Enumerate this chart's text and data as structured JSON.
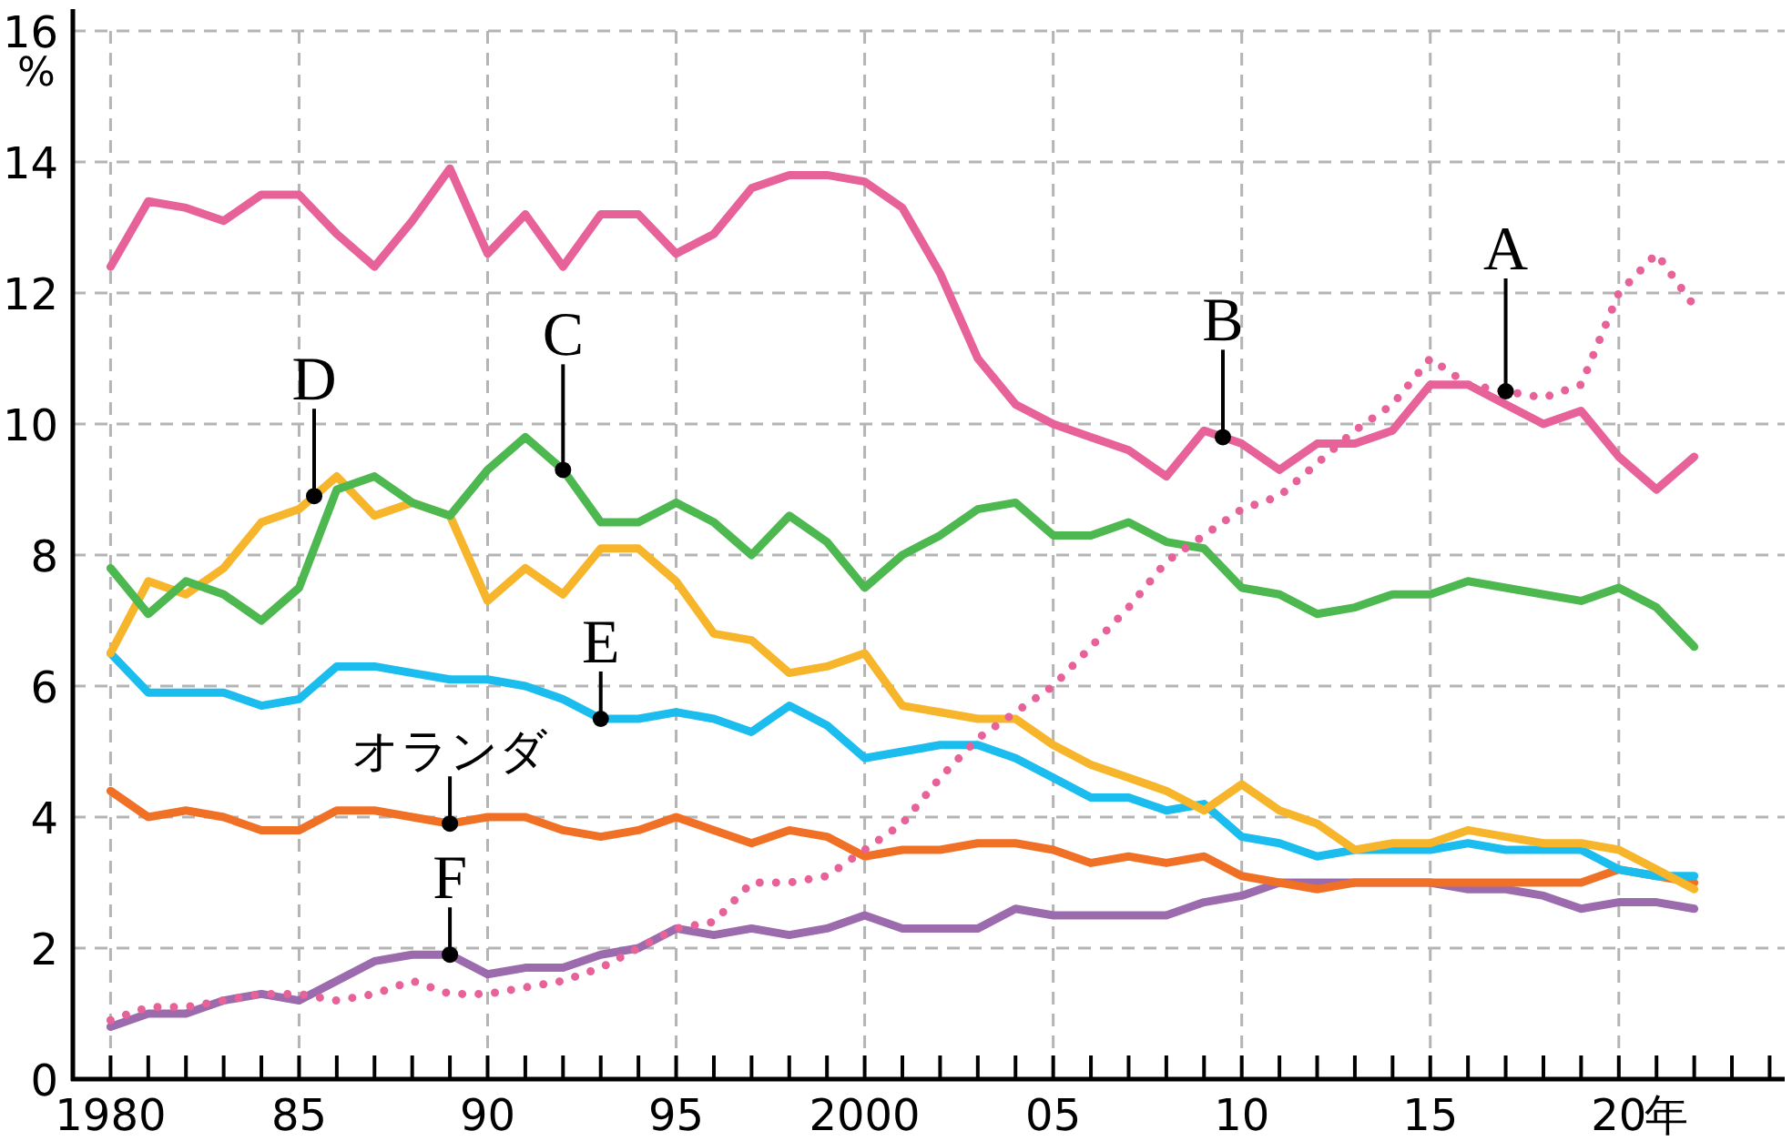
{
  "chart_data": {
    "type": "line",
    "xlabel": "年",
    "ylabel": "%",
    "grid": true,
    "marker": "none",
    "line_style": "solid",
    "x": [
      1980,
      1981,
      1982,
      1983,
      1984,
      1985,
      1986,
      1987,
      1988,
      1989,
      1990,
      1991,
      1992,
      1993,
      1994,
      1995,
      1996,
      1997,
      1998,
      1999,
      2000,
      2001,
      2002,
      2003,
      2004,
      2005,
      2006,
      2007,
      2008,
      2009,
      2010,
      2011,
      2012,
      2013,
      2014,
      2015,
      2016,
      2017,
      2018,
      2019,
      2020,
      2021,
      2022
    ],
    "xlim": [
      1979,
      2024.4
    ],
    "xticks": [
      1980,
      {
        "value": 1981,
        "label": null
      },
      {
        "value": 1982,
        "label": null
      },
      {
        "value": 1983,
        "label": null
      },
      {
        "value": 1984,
        "label": null
      },
      {
        "value": 1985,
        "label": "85"
      },
      {
        "value": 1986,
        "label": null
      },
      {
        "value": 1987,
        "label": null
      },
      {
        "value": 1988,
        "label": null
      },
      {
        "value": 1989,
        "label": null
      },
      {
        "value": 1990,
        "label": "90"
      },
      {
        "value": 1991,
        "label": null
      },
      {
        "value": 1992,
        "label": null
      },
      {
        "value": 1993,
        "label": null
      },
      {
        "value": 1994,
        "label": null
      },
      {
        "value": 1995,
        "label": "95"
      },
      {
        "value": 1996,
        "label": null
      },
      {
        "value": 1997,
        "label": null
      },
      {
        "value": 1998,
        "label": null
      },
      {
        "value": 1999,
        "label": null
      },
      2000,
      {
        "value": 2001,
        "label": null
      },
      {
        "value": 2002,
        "label": null
      },
      {
        "value": 2003,
        "label": null
      },
      {
        "value": 2004,
        "label": null
      },
      {
        "value": 2005,
        "label": "05"
      },
      {
        "value": 2006,
        "label": null
      },
      {
        "value": 2007,
        "label": null
      },
      {
        "value": 2008,
        "label": null
      },
      {
        "value": 2009,
        "label": null
      },
      {
        "value": 2010,
        "label": "10"
      },
      {
        "value": 2011,
        "label": null
      },
      {
        "value": 2012,
        "label": null
      },
      {
        "value": 2013,
        "label": null
      },
      {
        "value": 2014,
        "label": null
      },
      {
        "value": 2015,
        "label": "15"
      },
      {
        "value": 2016,
        "label": null
      },
      {
        "value": 2017,
        "label": null
      },
      {
        "value": 2018,
        "label": null
      },
      {
        "value": 2019,
        "label": null
      },
      {
        "value": 2020,
        "label": "20"
      },
      {
        "value": 2021,
        "label": null
      },
      {
        "value": 2022,
        "label": null
      },
      {
        "value": 2023,
        "label": null
      },
      {
        "value": 2024,
        "label": null
      }
    ],
    "ylim": [
      0,
      16
    ],
    "yticks": [
      0,
      2,
      4,
      6,
      8,
      10,
      12,
      14,
      16
    ],
    "series": [
      {
        "color": "#e8629a",
        "line_style": "dotted",
        "values": [
          0.9,
          1.1,
          1.1,
          1.2,
          1.3,
          1.3,
          1.2,
          1.3,
          1.5,
          1.3,
          1.3,
          1.4,
          1.5,
          1.7,
          2.0,
          2.3,
          2.4,
          3.0,
          3.0,
          3.1,
          3.5,
          3.9,
          4.6,
          5.2,
          5.6,
          6.0,
          6.6,
          7.2,
          7.9,
          8.3,
          8.7,
          8.9,
          9.4,
          9.9,
          10.3,
          11.0,
          10.6,
          10.5,
          10.4,
          10.6,
          12.0,
          12.6,
          11.8
        ]
      },
      {
        "color": "#e8629a",
        "values": [
          12.4,
          13.4,
          13.3,
          13.1,
          13.5,
          13.5,
          12.9,
          12.4,
          13.1,
          13.9,
          12.6,
          13.2,
          12.4,
          13.2,
          13.2,
          12.6,
          12.9,
          13.6,
          13.8,
          13.8,
          13.7,
          13.3,
          12.3,
          11.0,
          10.3,
          10.0,
          9.8,
          9.6,
          9.2,
          9.9,
          9.7,
          9.3,
          9.7,
          9.7,
          9.9,
          10.6,
          10.6,
          10.3,
          10.0,
          10.2,
          9.5,
          9.0,
          9.5
        ]
      },
      {
        "color": "#4cb84f",
        "values": [
          7.8,
          7.1,
          7.6,
          7.4,
          7.0,
          7.5,
          9.0,
          9.2,
          8.8,
          8.6,
          9.3,
          9.8,
          9.3,
          8.5,
          8.5,
          8.8,
          8.5,
          8.0,
          8.6,
          8.2,
          7.5,
          8.0,
          8.3,
          8.7,
          8.8,
          8.3,
          8.3,
          8.5,
          8.2,
          8.1,
          7.5,
          7.4,
          7.1,
          7.2,
          7.4,
          7.4,
          7.6,
          7.5,
          7.4,
          7.3,
          7.5,
          7.2,
          6.6
        ]
      },
      {
        "color": "#f7b52c",
        "values": [
          6.5,
          7.6,
          7.4,
          7.8,
          8.5,
          8.7,
          9.2,
          8.6,
          8.8,
          8.6,
          7.3,
          7.8,
          7.4,
          8.1,
          8.1,
          7.6,
          6.8,
          6.7,
          6.2,
          6.3,
          6.5,
          5.7,
          5.6,
          5.5,
          5.5,
          5.1,
          4.8,
          4.6,
          4.4,
          4.1,
          4.5,
          4.1,
          3.9,
          3.5,
          3.6,
          3.6,
          3.8,
          3.7,
          3.6,
          3.6,
          3.5,
          3.2,
          2.9
        ]
      },
      {
        "color": "#1bbcee",
        "values": [
          6.5,
          5.9,
          5.9,
          5.9,
          5.7,
          5.8,
          6.3,
          6.3,
          6.2,
          6.1,
          6.1,
          6.0,
          5.8,
          5.5,
          5.5,
          5.6,
          5.5,
          5.3,
          5.7,
          5.4,
          4.9,
          5.0,
          5.1,
          5.1,
          4.9,
          4.6,
          4.3,
          4.3,
          4.1,
          4.2,
          3.7,
          3.6,
          3.4,
          3.5,
          3.5,
          3.5,
          3.6,
          3.5,
          3.5,
          3.5,
          3.2,
          3.1,
          3.1
        ]
      },
      {
        "color": "#f07026",
        "values": [
          4.4,
          4.0,
          4.1,
          4.0,
          3.8,
          3.8,
          4.1,
          4.1,
          4.0,
          3.9,
          4.0,
          4.0,
          3.8,
          3.7,
          3.8,
          4.0,
          3.8,
          3.6,
          3.8,
          3.7,
          3.4,
          3.5,
          3.5,
          3.6,
          3.6,
          3.5,
          3.3,
          3.4,
          3.3,
          3.4,
          3.1,
          3.0,
          2.9,
          3.0,
          3.0,
          3.0,
          3.0,
          3.0,
          3.0,
          3.0,
          3.2,
          3.1,
          3.0
        ]
      },
      {
        "color": "#9b6bad",
        "values": [
          0.8,
          1.0,
          1.0,
          1.2,
          1.3,
          1.2,
          1.5,
          1.8,
          1.9,
          1.9,
          1.6,
          1.7,
          1.7,
          1.9,
          2.0,
          2.3,
          2.2,
          2.3,
          2.2,
          2.3,
          2.5,
          2.3,
          2.3,
          2.3,
          2.6,
          2.5,
          2.5,
          2.5,
          2.5,
          2.7,
          2.8,
          3.0,
          3.0,
          3.0,
          3.0,
          3.0,
          2.9,
          2.9,
          2.8,
          2.6,
          2.7,
          2.7,
          2.6
        ]
      }
    ],
    "annotations": [
      {
        "text": "A",
        "x": 2017,
        "y": 10.5
      },
      {
        "text": "B",
        "x": 2009.5,
        "y": 9.8
      },
      {
        "text": "C",
        "x": 1992,
        "y": 9.3
      },
      {
        "text": "D",
        "x": 1985.4,
        "y": 8.9
      },
      {
        "text": "E",
        "x": 1993,
        "y": 5.5
      },
      {
        "text": "オランダ",
        "x": 1989,
        "y": 3.9
      },
      {
        "text": "F",
        "x": 1989,
        "y": 1.9
      }
    ]
  }
}
